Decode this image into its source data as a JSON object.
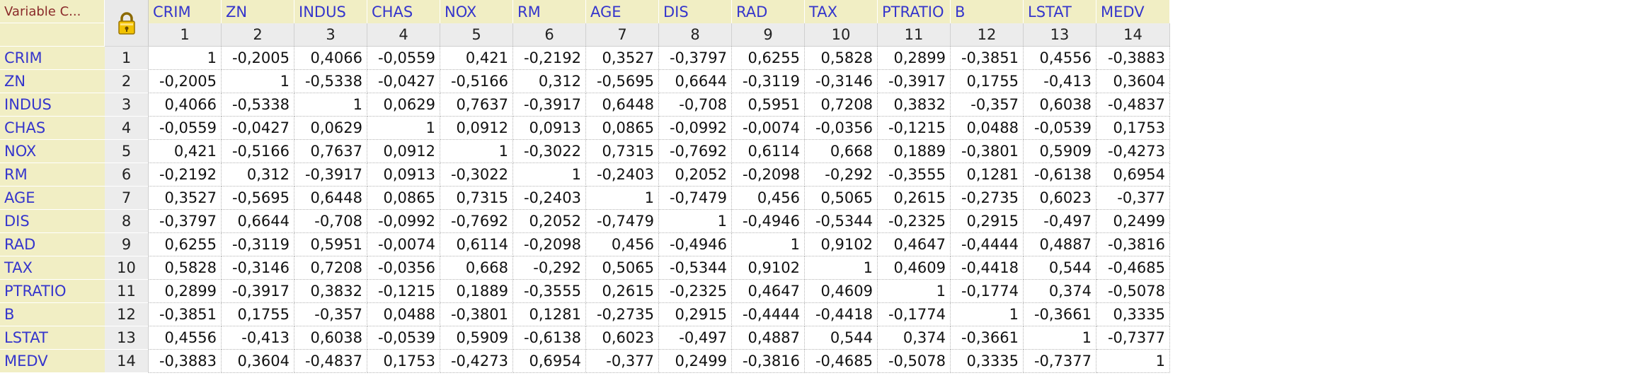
{
  "header": {
    "corner_label": "Variable C...",
    "lock_icon": "lock-icon"
  },
  "columns": [
    {
      "name": "CRIM",
      "number": "1"
    },
    {
      "name": "ZN",
      "number": "2"
    },
    {
      "name": "INDUS",
      "number": "3"
    },
    {
      "name": "CHAS",
      "number": "4"
    },
    {
      "name": "NOX",
      "number": "5"
    },
    {
      "name": "RM",
      "number": "6"
    },
    {
      "name": "AGE",
      "number": "7"
    },
    {
      "name": "DIS",
      "number": "8"
    },
    {
      "name": "RAD",
      "number": "9"
    },
    {
      "name": "TAX",
      "number": "10"
    },
    {
      "name": "PTRATIO",
      "number": "11"
    },
    {
      "name": "B",
      "number": "12"
    },
    {
      "name": "LSTAT",
      "number": "13"
    },
    {
      "name": "MEDV",
      "number": "14"
    }
  ],
  "rows": [
    {
      "name": "CRIM",
      "number": "1",
      "values": [
        "1",
        "-0,2005",
        "0,4066",
        "-0,0559",
        "0,421",
        "-0,2192",
        "0,3527",
        "-0,3797",
        "0,6255",
        "0,5828",
        "0,2899",
        "-0,3851",
        "0,4556",
        "-0,3883"
      ]
    },
    {
      "name": "ZN",
      "number": "2",
      "values": [
        "-0,2005",
        "1",
        "-0,5338",
        "-0,0427",
        "-0,5166",
        "0,312",
        "-0,5695",
        "0,6644",
        "-0,3119",
        "-0,3146",
        "-0,3917",
        "0,1755",
        "-0,413",
        "0,3604"
      ]
    },
    {
      "name": "INDUS",
      "number": "3",
      "values": [
        "0,4066",
        "-0,5338",
        "1",
        "0,0629",
        "0,7637",
        "-0,3917",
        "0,6448",
        "-0,708",
        "0,5951",
        "0,7208",
        "0,3832",
        "-0,357",
        "0,6038",
        "-0,4837"
      ]
    },
    {
      "name": "CHAS",
      "number": "4",
      "values": [
        "-0,0559",
        "-0,0427",
        "0,0629",
        "1",
        "0,0912",
        "0,0913",
        "0,0865",
        "-0,0992",
        "-0,0074",
        "-0,0356",
        "-0,1215",
        "0,0488",
        "-0,0539",
        "0,1753"
      ]
    },
    {
      "name": "NOX",
      "number": "5",
      "values": [
        "0,421",
        "-0,5166",
        "0,7637",
        "0,0912",
        "1",
        "-0,3022",
        "0,7315",
        "-0,7692",
        "0,6114",
        "0,668",
        "0,1889",
        "-0,3801",
        "0,5909",
        "-0,4273"
      ]
    },
    {
      "name": "RM",
      "number": "6",
      "values": [
        "-0,2192",
        "0,312",
        "-0,3917",
        "0,0913",
        "-0,3022",
        "1",
        "-0,2403",
        "0,2052",
        "-0,2098",
        "-0,292",
        "-0,3555",
        "0,1281",
        "-0,6138",
        "0,6954"
      ]
    },
    {
      "name": "AGE",
      "number": "7",
      "values": [
        "0,3527",
        "-0,5695",
        "0,6448",
        "0,0865",
        "0,7315",
        "-0,2403",
        "1",
        "-0,7479",
        "0,456",
        "0,5065",
        "0,2615",
        "-0,2735",
        "0,6023",
        "-0,377"
      ]
    },
    {
      "name": "DIS",
      "number": "8",
      "values": [
        "-0,3797",
        "0,6644",
        "-0,708",
        "-0,0992",
        "-0,7692",
        "0,2052",
        "-0,7479",
        "1",
        "-0,4946",
        "-0,5344",
        "-0,2325",
        "0,2915",
        "-0,497",
        "0,2499"
      ]
    },
    {
      "name": "RAD",
      "number": "9",
      "values": [
        "0,6255",
        "-0,3119",
        "0,5951",
        "-0,0074",
        "0,6114",
        "-0,2098",
        "0,456",
        "-0,4946",
        "1",
        "0,9102",
        "0,4647",
        "-0,4444",
        "0,4887",
        "-0,3816"
      ]
    },
    {
      "name": "TAX",
      "number": "10",
      "values": [
        "0,5828",
        "-0,3146",
        "0,7208",
        "-0,0356",
        "0,668",
        "-0,292",
        "0,5065",
        "-0,5344",
        "0,9102",
        "1",
        "0,4609",
        "-0,4418",
        "0,544",
        "-0,4685"
      ]
    },
    {
      "name": "PTRATIO",
      "number": "11",
      "values": [
        "0,2899",
        "-0,3917",
        "0,3832",
        "-0,1215",
        "0,1889",
        "-0,3555",
        "0,2615",
        "-0,2325",
        "0,4647",
        "0,4609",
        "1",
        "-0,1774",
        "0,374",
        "-0,5078"
      ]
    },
    {
      "name": "B",
      "number": "12",
      "values": [
        "-0,3851",
        "0,1755",
        "-0,357",
        "0,0488",
        "-0,3801",
        "0,1281",
        "-0,2735",
        "0,2915",
        "-0,4444",
        "-0,4418",
        "-0,1774",
        "1",
        "-0,3661",
        "0,3335"
      ]
    },
    {
      "name": "LSTAT",
      "number": "13",
      "values": [
        "0,4556",
        "-0,413",
        "0,6038",
        "-0,0539",
        "0,5909",
        "-0,6138",
        "0,6023",
        "-0,497",
        "0,4887",
        "0,544",
        "0,374",
        "-0,3661",
        "1",
        "-0,7377"
      ]
    },
    {
      "name": "MEDV",
      "number": "14",
      "values": [
        "-0,3883",
        "0,3604",
        "-0,4837",
        "0,1753",
        "-0,4273",
        "0,6954",
        "-0,377",
        "0,2499",
        "-0,3816",
        "-0,4685",
        "-0,5078",
        "0,3335",
        "-0,7377",
        "1"
      ]
    }
  ]
}
